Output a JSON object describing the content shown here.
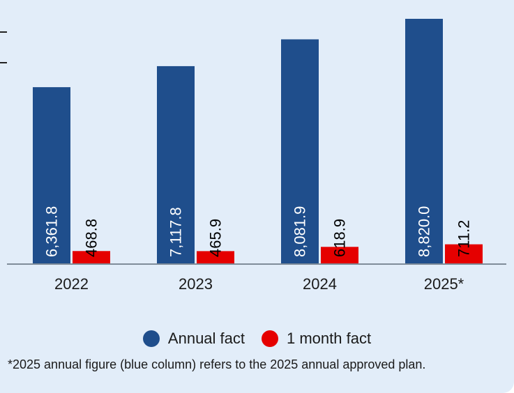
{
  "chart_data": {
    "type": "bar",
    "categories": [
      "2022",
      "2023",
      "2024",
      "2025*"
    ],
    "series": [
      {
        "name": "Annual fact",
        "values": [
          6361.8,
          7117.8,
          8081.9,
          8820.0
        ],
        "labels": [
          "6,361.8",
          "7,117.8",
          "8,081.9",
          "8,820.0"
        ],
        "color": "#1f4e8c"
      },
      {
        "name": "1 month fact",
        "values": [
          468.8,
          465.9,
          618.9,
          711.2
        ],
        "labels": [
          "468.8",
          "465.9",
          "618.9",
          "711.2"
        ],
        "color": "#e50000"
      }
    ],
    "title": "",
    "xlabel": "",
    "ylabel": "",
    "ylim": [
      0,
      9000
    ],
    "grid": false,
    "legend_position": "bottom"
  },
  "footnote": "*2025 annual figure (blue column) refers to the 2025 annual approved plan.",
  "colors": {
    "panel_background": "#e2edf9",
    "axis": "#7f8c99",
    "text": "#1a1a1a"
  }
}
